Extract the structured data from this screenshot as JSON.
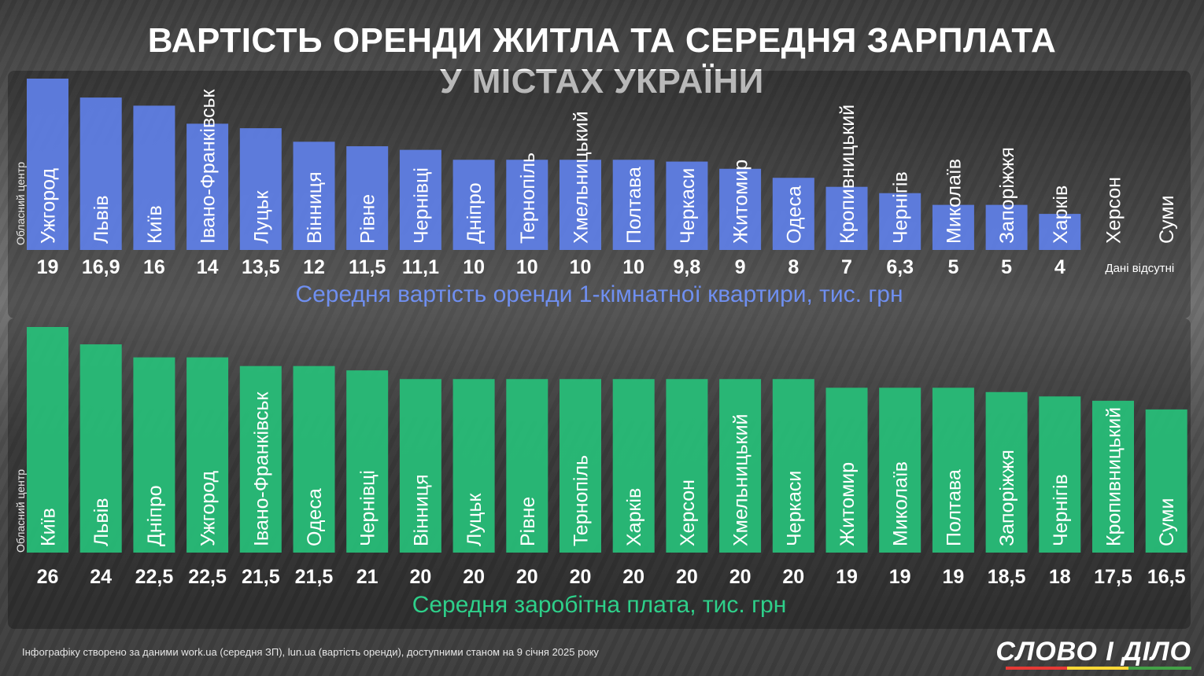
{
  "title_line1": "ВАРТІСТЬ ОРЕНДИ ЖИТЛА ТА СЕРЕДНЯ ЗАРПЛАТА",
  "title_line2": "У МІСТАХ УКРАЇНИ",
  "footer": "Інфографіку створено за даними work.ua (середня ЗП), lun.ua (вартість оренди), доступними станом на 9 січня 2025 року",
  "logo": "СЛОВО І ДІЛО",
  "colors": {
    "rent": "#5f80e8",
    "salary": "#27c07a",
    "rent_caption": "#6f8ff0",
    "salary_caption": "#2ed08a"
  },
  "chart_data": [
    {
      "type": "bar",
      "side_label": "Обласний центр",
      "caption": "Середня вартість оренди 1-кімнатної квартири, тис. грн",
      "no_data_label": "Дані відсутні",
      "ylim": [
        0,
        19
      ],
      "categories": [
        "Ужгород",
        "Львів",
        "Київ",
        "Івано-Франківськ",
        "Луцьк",
        "Вінниця",
        "Рівне",
        "Чернівці",
        "Дніпро",
        "Тернопіль",
        "Хмельницький",
        "Полтава",
        "Черкаси",
        "Житомир",
        "Одеса",
        "Кропивницький",
        "Чернігів",
        "Миколаїв",
        "Запоріжжя",
        "Харків",
        "Херсон",
        "Суми"
      ],
      "values": [
        19,
        16.9,
        16,
        14,
        13.5,
        12,
        11.5,
        11.1,
        10,
        10,
        10,
        10,
        9.8,
        9,
        8,
        7,
        6.3,
        5,
        5,
        4,
        null,
        null
      ],
      "value_labels": [
        "19",
        "16,9",
        "16",
        "14",
        "13,5",
        "12",
        "11,5",
        "11,1",
        "10",
        "10",
        "10",
        "10",
        "9,8",
        "9",
        "8",
        "7",
        "6,3",
        "5",
        "5",
        "4",
        "",
        ""
      ]
    },
    {
      "type": "bar",
      "side_label": "Обласний центр",
      "caption": "Середня заробітна плата, тис. грн",
      "ylim": [
        0,
        26
      ],
      "categories": [
        "Київ",
        "Львів",
        "Дніпро",
        "Ужгород",
        "Івано-Франківськ",
        "Одеса",
        "Чернівці",
        "Вінниця",
        "Луцьк",
        "Рівне",
        "Тернопіль",
        "Харків",
        "Херсон",
        "Хмельницький",
        "Черкаси",
        "Житомир",
        "Миколаїв",
        "Полтава",
        "Запоріжжя",
        "Чернігів",
        "Кропивницький",
        "Суми"
      ],
      "values": [
        26,
        24,
        22.5,
        22.5,
        21.5,
        21.5,
        21,
        20,
        20,
        20,
        20,
        20,
        20,
        20,
        20,
        19,
        19,
        19,
        18.5,
        18,
        17.5,
        16.5
      ],
      "value_labels": [
        "26",
        "24",
        "22,5",
        "22,5",
        "21,5",
        "21,5",
        "21",
        "20",
        "20",
        "20",
        "20",
        "20",
        "20",
        "20",
        "20",
        "19",
        "19",
        "19",
        "18,5",
        "18",
        "17,5",
        "16,5"
      ]
    }
  ]
}
